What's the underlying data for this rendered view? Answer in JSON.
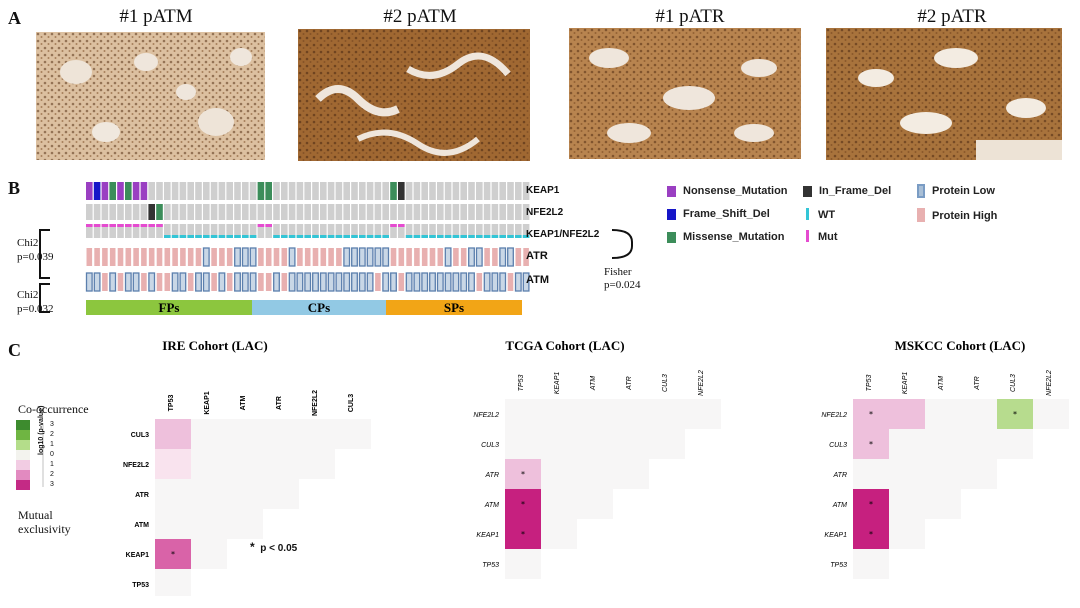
{
  "panels": {
    "a": "A",
    "b": "B",
    "c": "C"
  },
  "panelA": {
    "titles": [
      "#1 pATM",
      "#2 pATM",
      "#1 pATR",
      "#2 pATR"
    ]
  },
  "panelB": {
    "genes": [
      "KEAP1",
      "NFE2L2",
      "KEAP1/NFE2L2",
      "ATR",
      "ATM"
    ],
    "legend": {
      "nonsense": "Nonsense_Mutation",
      "frameshift": "Frame_Shift_Del",
      "missense": "Missense_Mutation",
      "inframe": "In_Frame_Del",
      "wt": "WT",
      "mut": "Mut",
      "protein_low": "Protein Low",
      "protein_high": "Protein High"
    },
    "stats": {
      "chi1_label": "Chi2",
      "chi1_p": "p=0.039",
      "chi2_label": "Chi2",
      "chi2_p": "p=0.032",
      "fisher_label": "Fisher",
      "fisher_p": "p=0.024"
    },
    "groups": [
      "FPs",
      "CPs",
      "SPs"
    ],
    "colors": {
      "nonsense": "#9a3fc2",
      "frameshift": "#1616c8",
      "missense": "#3c8d5a",
      "inframe": "#333333",
      "empty": "#cfcfcf",
      "wt": "#33c5d6",
      "mut": "#e54bd0",
      "high": "#e8b0b0",
      "low": "#a9bfd6",
      "FPs": "#8cc63e",
      "CPs": "#92c9e4",
      "SPs": "#f2a516"
    }
  },
  "panelC": {
    "legend_title": "Co-occurrence",
    "legend_bottom": "Mutual exclusivity",
    "legend_ticks": [
      "3",
      "2",
      "1",
      "0",
      "1",
      "2",
      "3"
    ],
    "legend_axis": "log10 (p-value)",
    "note": "p < 0.05",
    "star": "*",
    "cohorts": [
      {
        "title": "IRE Cohort (LAC)",
        "cols": [
          "TP53",
          "KEAP1",
          "ATM",
          "ATR",
          "NFE2L2",
          "CUL3"
        ],
        "rows": [
          "CUL3",
          "NFE2L2",
          "ATR",
          "ATM",
          "KEAP1",
          "TP53"
        ]
      },
      {
        "title": "TCGA Cohort (LAC)",
        "cols": [
          "TP53",
          "KEAP1",
          "ATM",
          "ATR",
          "CUL3",
          "NFE2L2"
        ],
        "rows": [
          "NFE2L2",
          "CUL3",
          "ATR",
          "ATM",
          "KEAP1",
          "TP53"
        ]
      },
      {
        "title": "MSKCC Cohort (LAC)",
        "cols": [
          "TP53",
          "KEAP1",
          "ATM",
          "ATR",
          "CUL3",
          "NFE2L2"
        ],
        "rows": [
          "NFE2L2",
          "CUL3",
          "ATR",
          "ATM",
          "KEAP1",
          "TP53"
        ]
      }
    ]
  }
}
